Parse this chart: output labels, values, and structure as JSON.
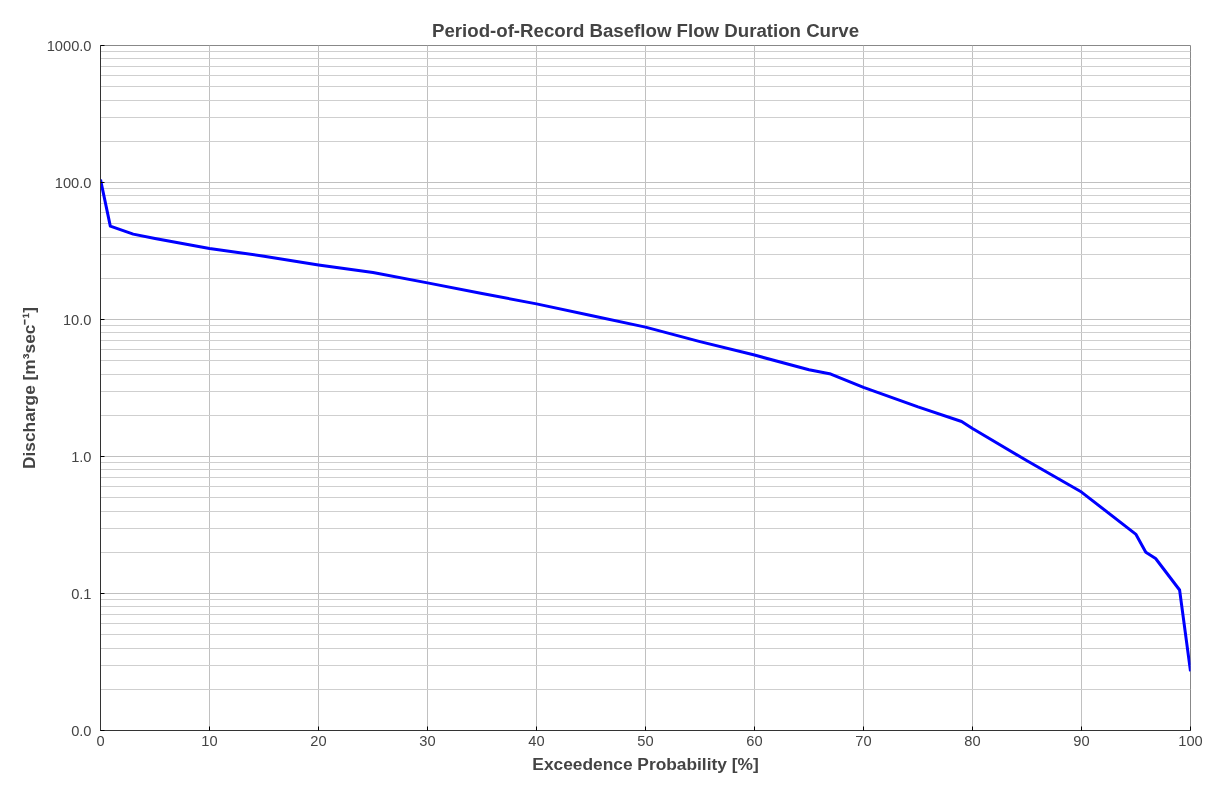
{
  "chart_data": {
    "type": "line",
    "title": "Period-of-Record Baseflow Flow Duration Curve",
    "xlabel": "Exceedence Probability [%]",
    "ylabel": "Discharge [m³sec⁻¹]",
    "log": "y",
    "grid": true,
    "marker": "none",
    "line_style": "solid",
    "xlim": [
      0,
      100
    ],
    "xticks": [
      0,
      10,
      20,
      30,
      40,
      50,
      60,
      70,
      80,
      90,
      100
    ],
    "ylim": [
      0.01,
      1000
    ],
    "yticks": [
      {
        "value": 0.01,
        "label": "0.0"
      },
      0.1,
      {
        "value": 1,
        "label": "1.0"
      },
      {
        "value": 10,
        "label": "10.0"
      },
      {
        "value": 100,
        "label": "100.0"
      },
      {
        "value": 1000,
        "label": "1000.0"
      }
    ],
    "x": [
      0,
      0.9,
      3,
      5,
      10,
      15,
      20,
      25,
      30,
      35,
      40,
      45,
      50,
      55,
      60,
      65,
      67,
      70,
      75,
      79,
      80,
      85,
      90,
      95,
      95.9,
      96.8,
      99,
      100
    ],
    "series": [
      {
        "color": "#0000ff",
        "values": [
          105,
          48,
          42,
          39,
          33,
          29,
          25,
          22,
          18.5,
          15.5,
          13,
          10.7,
          8.8,
          6.9,
          5.5,
          4.3,
          4,
          3.2,
          2.3,
          1.8,
          1.6,
          0.93,
          0.55,
          0.27,
          0.2,
          0.18,
          0.106,
          0.027
        ]
      }
    ]
  }
}
